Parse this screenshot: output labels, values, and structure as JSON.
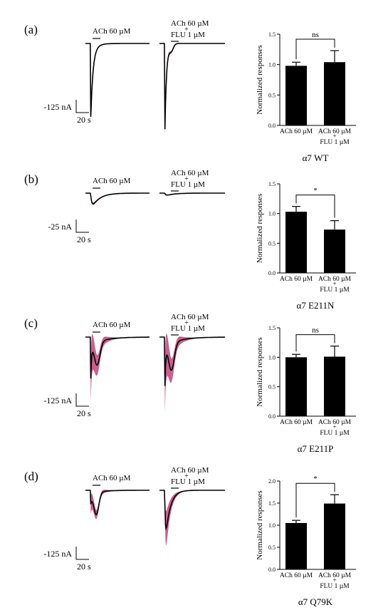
{
  "panels": [
    {
      "label": "(a)",
      "drug_label": "ACh 60 µM",
      "drug_label_line1": "ACh 60 µM",
      "drug_label_plus": "+",
      "drug_label_line2": "FLU 1 µM",
      "scale_current": "-125 nA",
      "scale_time": "20 s",
      "caption": "α7 WT",
      "trace_style": "fast_single",
      "trace1_depth": 0.95,
      "trace2_depth": 1.25,
      "chart_data": {
        "type": "bar",
        "ylabel": "Normalized responses",
        "ylim": [
          0,
          1.5
        ],
        "yticks": [
          "0.0",
          "0.5",
          "1.0",
          "1.5"
        ],
        "categories": [
          "ACh 60 µM",
          "ACh 60 µM + FLU 1 µM"
        ],
        "cat_line1": [
          "ACh 60 µM",
          "ACh 60 µM"
        ],
        "cat_plus": [
          "",
          "+"
        ],
        "cat_line2": [
          "",
          "FLU 1 µM"
        ],
        "values": [
          0.98,
          1.04
        ],
        "errors": [
          0.06,
          0.19
        ],
        "significance": "ns"
      }
    },
    {
      "label": "(b)",
      "drug_label": "ACh 60 µM",
      "drug_label_line1": "ACh 60 µM",
      "drug_label_plus": "+",
      "drug_label_line2": "FLU 1 µM",
      "scale_current": "-25 nA",
      "scale_time": "20 s",
      "caption": "α7 E211N",
      "trace_style": "slow_small",
      "trace1_depth": 0.22,
      "trace2_depth": 0.04,
      "chart_data": {
        "type": "bar",
        "ylabel": "Normalized responses",
        "ylim": [
          0,
          1.5
        ],
        "yticks": [
          "0.0",
          "0.5",
          "1.0",
          "1.5"
        ],
        "categories": [
          "ACh 60 µM",
          "ACh 60 µM + FLU 1 µM"
        ],
        "cat_line1": [
          "ACh 60 µM",
          "ACh 60 µM"
        ],
        "cat_plus": [
          "",
          "+"
        ],
        "cat_line2": [
          "",
          "FLU 1 µM"
        ],
        "values": [
          1.03,
          0.73
        ],
        "errors": [
          0.09,
          0.15
        ],
        "significance": "*"
      }
    },
    {
      "label": "(c)",
      "drug_label": "ACh 60 µM",
      "drug_label_line1": "ACh 60 µM",
      "drug_label_plus": "+",
      "drug_label_line2": "FLU 1 µM",
      "scale_current": "-125 nA",
      "scale_time": "20 s",
      "caption": "α7 E211P",
      "trace_style": "biphasic",
      "trace1_depth": 0.55,
      "trace2_depth": 0.65,
      "chart_data": {
        "type": "bar",
        "ylabel": "Normalized responses",
        "ylim": [
          0,
          1.5
        ],
        "yticks": [
          "0.0",
          "0.5",
          "1.0",
          "1.5"
        ],
        "categories": [
          "ACh 60 µM",
          "ACh 60 µM + FLU 1 µM"
        ],
        "cat_line1": [
          "ACh 60 µM",
          "ACh 60 µM"
        ],
        "cat_plus": [
          "",
          "+"
        ],
        "cat_line2": [
          "",
          "FLU 1 µM"
        ],
        "values": [
          1.0,
          1.01
        ],
        "errors": [
          0.05,
          0.18
        ],
        "significance": "ns"
      }
    },
    {
      "label": "(d)",
      "drug_label": "ACh 60 µM",
      "drug_label_line1": "ACh 60 µM",
      "drug_label_plus": "+",
      "drug_label_line2": "FLU 1 µM",
      "scale_current": "-125 nA",
      "scale_time": "20 s",
      "caption": "α7 Q79K",
      "trace_style": "biphasic_d",
      "trace1_depth": 0.35,
      "trace2_depth": 0.75,
      "chart_data": {
        "type": "bar",
        "ylabel": "Normalized responses",
        "ylim": [
          0,
          2.0
        ],
        "yticks": [
          "0.0",
          "0.5",
          "1.0",
          "1.5",
          "2.0"
        ],
        "categories": [
          "ACh 60 µM",
          "ACh 60 µM + FLU 1 µM"
        ],
        "cat_line1": [
          "ACh 60 µM",
          "ACh 60 µM"
        ],
        "cat_plus": [
          "",
          "+"
        ],
        "cat_line2": [
          "",
          "FLU 1 µM"
        ],
        "values": [
          1.05,
          1.49
        ],
        "errors": [
          0.06,
          0.2
        ],
        "significance": "*"
      }
    }
  ],
  "colors": {
    "trace": "#000000",
    "sem_band": "#c0447a",
    "bar": "#000000"
  }
}
